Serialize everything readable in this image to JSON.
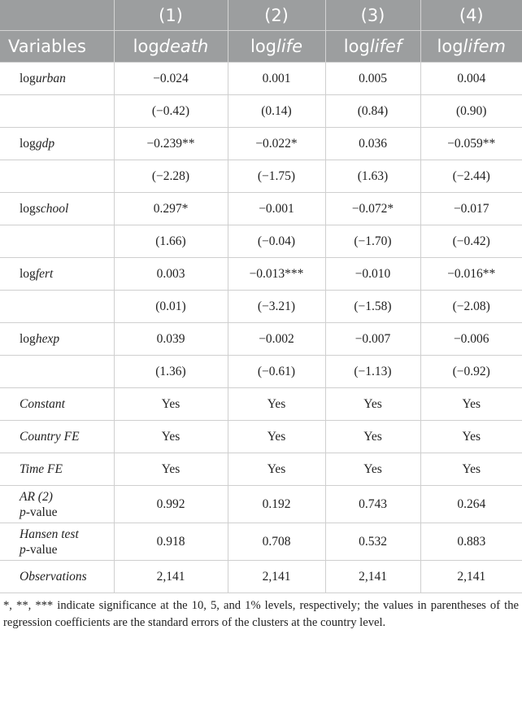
{
  "table": {
    "header_numbers": [
      "(1)",
      "(2)",
      "(3)",
      "(4)"
    ],
    "header_variable_label": "Variables",
    "dependent_vars": [
      {
        "prefix": "log",
        "name": "death"
      },
      {
        "prefix": "log",
        "name": "life"
      },
      {
        "prefix": "log",
        "name": "lifef"
      },
      {
        "prefix": "log",
        "name": "lifem"
      }
    ],
    "rows": [
      {
        "label": {
          "prefix": "log",
          "name": "urban"
        },
        "values": [
          "−0.024",
          "0.001",
          "0.005",
          "0.004"
        ]
      },
      {
        "label": {
          "prefix": "",
          "name": ""
        },
        "values": [
          "(−0.42)",
          "(0.14)",
          "(0.84)",
          "(0.90)"
        ]
      },
      {
        "label": {
          "prefix": "log",
          "name": "gdp"
        },
        "values": [
          "−0.239**",
          "−0.022*",
          "0.036",
          "−0.059**"
        ]
      },
      {
        "label": {
          "prefix": "",
          "name": ""
        },
        "values": [
          "(−2.28)",
          "(−1.75)",
          "(1.63)",
          "(−2.44)"
        ]
      },
      {
        "label": {
          "prefix": "log",
          "name": "school"
        },
        "values": [
          "0.297*",
          "−0.001",
          "−0.072*",
          "−0.017"
        ]
      },
      {
        "label": {
          "prefix": "",
          "name": ""
        },
        "values": [
          "(1.66)",
          "(−0.04)",
          "(−1.70)",
          "(−0.42)"
        ]
      },
      {
        "label": {
          "prefix": "log",
          "name": "fert"
        },
        "values": [
          "0.003",
          "−0.013***",
          "−0.010",
          "−0.016**"
        ]
      },
      {
        "label": {
          "prefix": "",
          "name": ""
        },
        "values": [
          "(0.01)",
          "(−3.21)",
          "(−1.58)",
          "(−2.08)"
        ]
      },
      {
        "label": {
          "prefix": "log",
          "name": "hexp"
        },
        "values": [
          "0.039",
          "−0.002",
          "−0.007",
          "−0.006"
        ]
      },
      {
        "label": {
          "prefix": "",
          "name": ""
        },
        "values": [
          "(1.36)",
          "(−0.61)",
          "(−1.13)",
          "(−0.92)"
        ]
      },
      {
        "label": {
          "prefix": "",
          "name": "Constant"
        },
        "values": [
          "Yes",
          "Yes",
          "Yes",
          "Yes"
        ]
      },
      {
        "label": {
          "prefix": "",
          "name": "Country FE"
        },
        "values": [
          "Yes",
          "Yes",
          "Yes",
          "Yes"
        ]
      },
      {
        "label": {
          "prefix": "",
          "name": "Time FE"
        },
        "values": [
          "Yes",
          "Yes",
          "Yes",
          "Yes"
        ]
      }
    ],
    "two_line_rows": [
      {
        "label_line1": "AR (2)",
        "label_line2_italic": "p",
        "label_line2_rest": "-value",
        "values": [
          "0.992",
          "0.192",
          "0.743",
          "0.264"
        ]
      },
      {
        "label_line1": "Hansen test",
        "label_line2_italic": "p",
        "label_line2_rest": "-value",
        "values": [
          "0.918",
          "0.708",
          "0.532",
          "0.883"
        ]
      }
    ],
    "observations": {
      "label": "Observations",
      "values": [
        "2,141",
        "2,141",
        "2,141",
        "2,141"
      ]
    }
  },
  "note": "*, **, *** indicate significance at the 10, 5, and 1% levels, respectively; the values in parentheses of the regression coefficients are the standard errors of the clusters at the country level.",
  "colors": {
    "header_bg": "#9c9e9f",
    "header_text": "#ffffff",
    "grid": "#cfcfcf",
    "text": "#222222"
  }
}
